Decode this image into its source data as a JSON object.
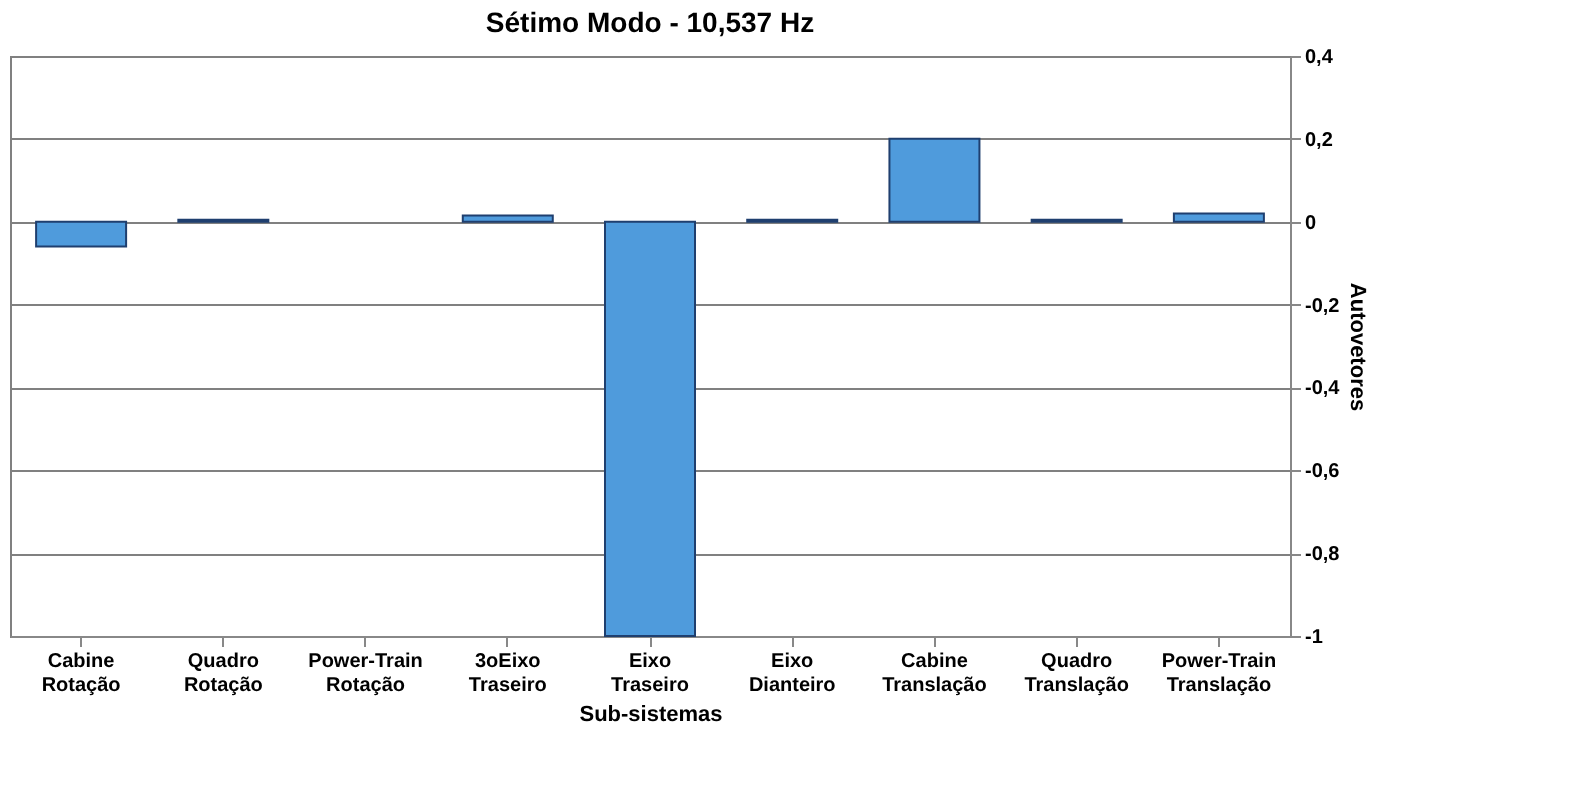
{
  "chart_data": {
    "type": "bar",
    "title": "Sétimo Modo - 10,537 Hz",
    "xlabel": "Sub-sistemas",
    "ylabel": "Autovetores",
    "categories": [
      "Cabine Rotação",
      "Quadro Rotação",
      "Power-Train Rotação",
      "3oEixo Traseiro",
      "Eixo Traseiro",
      "Eixo Dianteiro",
      "Cabine Translação",
      "Quadro Translação",
      "Power-Train Translação"
    ],
    "values": [
      -0.06,
      0.005,
      null,
      0.015,
      -1,
      0.005,
      0.2,
      0.005,
      0.02
    ],
    "color": "#4f9bdc",
    "ylim": [
      -1,
      0.4
    ],
    "yticks": [
      {
        "value": -1,
        "label": "-1"
      },
      {
        "value": -0.8,
        "label": "-0,8"
      },
      {
        "value": -0.6,
        "label": "-0,6"
      },
      {
        "value": -0.4,
        "label": "-0,4"
      },
      {
        "value": -0.2,
        "label": "-0,2"
      },
      {
        "value": 0,
        "label": "0"
      },
      {
        "value": 0.2,
        "label": "0,2"
      },
      {
        "value": 0.4,
        "label": "0,4"
      }
    ],
    "grid": "y"
  }
}
